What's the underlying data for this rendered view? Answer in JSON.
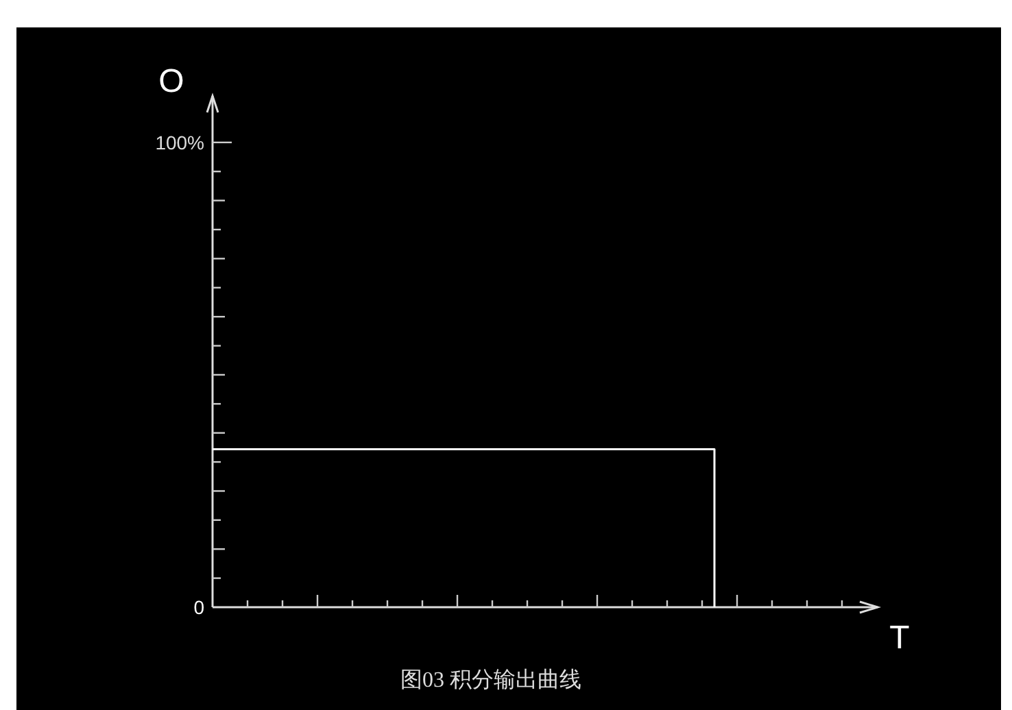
{
  "chart_data": {
    "type": "step",
    "title": "图03 积分输出曲线",
    "xlabel": "T",
    "ylabel": "O",
    "categories": [
      null,
      null
    ],
    "series": [
      {
        "color": "#ffffff",
        "values": [
          34,
          0
        ]
      }
    ],
    "ylim": [
      0,
      110
    ],
    "yticks": [
      {
        "value": 0,
        "label": "0"
      },
      {
        "value": 100,
        "label": "100%"
      }
    ],
    "grid": false
  }
}
